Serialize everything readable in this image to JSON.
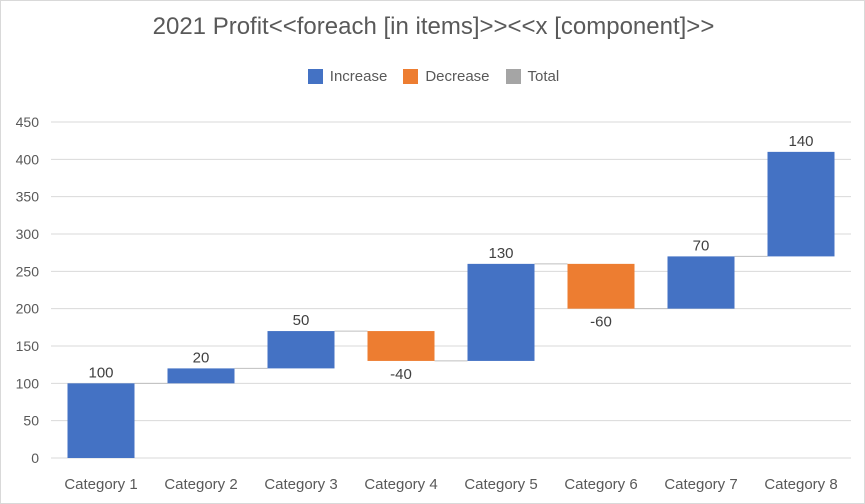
{
  "chart_data": {
    "type": "bar",
    "subtype": "waterfall",
    "title": "2021 Profit<<foreach [in items]>><<x [component]>>",
    "legend": [
      {
        "label": "Increase",
        "color": "#4472c4"
      },
      {
        "label": "Decrease",
        "color": "#ed7d31"
      },
      {
        "label": "Total",
        "color": "#a5a5a5"
      }
    ],
    "legend_position": "top",
    "categories": [
      "Category 1",
      "Category 2",
      "Category 3",
      "Category 4",
      "Category 5",
      "Category 6",
      "Category 7",
      "Category 8"
    ],
    "values": [
      100,
      20,
      50,
      -40,
      130,
      -60,
      70,
      140
    ],
    "data_labels": [
      "100",
      "20",
      "50",
      "-40",
      "130",
      "-60",
      "70",
      "140"
    ],
    "yticks": [
      "0",
      "50",
      "100",
      "150",
      "200",
      "250",
      "300",
      "350",
      "400",
      "450"
    ],
    "ylim": [
      0,
      450
    ],
    "grid": true
  }
}
